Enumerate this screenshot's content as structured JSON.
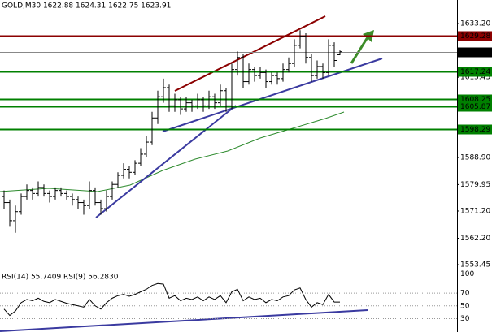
{
  "chart_data": {
    "type": "candlestick",
    "title": "GOLD,M30  1622.88 1624.31 1622.75 1623.91",
    "open": [
      1576,
      1574,
      1568,
      1571,
      1576,
      1578,
      1577,
      1579,
      1577,
      1576,
      1578,
      1577,
      1576,
      1575,
      1574,
      1573,
      1578,
      1574,
      1572,
      1576,
      1580,
      1583,
      1585,
      1584,
      1587,
      1590,
      1594,
      1602,
      1609,
      1612,
      1606,
      1608,
      1605,
      1607,
      1606,
      1608,
      1606,
      1609,
      1607,
      1611,
      1606,
      1618,
      1622,
      1614,
      1618,
      1616,
      1617,
      1614,
      1616,
      1615,
      1618,
      1620,
      1626,
      1629,
      1622,
      1616,
      1619,
      1617,
      1626,
      1622.88
    ],
    "high": [
      1578,
      1575,
      1573,
      1577,
      1580,
      1579,
      1581,
      1580,
      1578,
      1579,
      1579,
      1578,
      1577,
      1576,
      1575,
      1581,
      1579,
      1575,
      1578,
      1581,
      1584,
      1587,
      1586,
      1588,
      1592,
      1596,
      1604,
      1611,
      1615,
      1613,
      1610,
      1609,
      1609,
      1608,
      1610,
      1609,
      1611,
      1610,
      1613,
      1612,
      1620,
      1624,
      1623,
      1620,
      1619,
      1619,
      1618,
      1617,
      1617,
      1620,
      1622,
      1628,
      1631,
      1630,
      1623,
      1621,
      1620,
      1628,
      1627,
      1624.31
    ],
    "low": [
      1572,
      1566,
      1564,
      1570,
      1575,
      1575,
      1576,
      1576,
      1574,
      1575,
      1576,
      1575,
      1573,
      1572,
      1570,
      1572,
      1573,
      1570,
      1571,
      1575,
      1579,
      1582,
      1582,
      1583,
      1586,
      1589,
      1593,
      1600,
      1607,
      1604,
      1604,
      1603,
      1604,
      1604,
      1605,
      1604,
      1605,
      1605,
      1606,
      1604,
      1605,
      1616,
      1612,
      1613,
      1614,
      1615,
      1612,
      1613,
      1613,
      1614,
      1617,
      1619,
      1625,
      1620,
      1614,
      1615,
      1615,
      1616,
      1619,
      1622.75
    ],
    "close": [
      1574,
      1568,
      1571,
      1576,
      1578,
      1577,
      1579,
      1577,
      1576,
      1578,
      1577,
      1576,
      1575,
      1574,
      1573,
      1578,
      1574,
      1572,
      1576,
      1580,
      1583,
      1585,
      1584,
      1587,
      1590,
      1594,
      1602,
      1609,
      1612,
      1606,
      1608,
      1605,
      1607,
      1606,
      1608,
      1606,
      1609,
      1607,
      1611,
      1606,
      1618,
      1622,
      1614,
      1618,
      1616,
      1617,
      1614,
      1616,
      1615,
      1618,
      1620,
      1626,
      1629,
      1622,
      1616,
      1619,
      1617,
      1626,
      1621,
      1623.91
    ],
    "ylim": [
      1552.4,
      1641.0
    ],
    "yticks": [
      {
        "value": 1633.2,
        "label": "1633.20"
      },
      1615.45,
      {
        "value": 1588.9,
        "label": "1588.90"
      },
      1579.95,
      {
        "value": 1571.2,
        "label": "1571.20"
      },
      {
        "value": 1562.2,
        "label": "1562.20"
      },
      1553.45
    ],
    "levels": [
      {
        "value": 1629.28,
        "color": "#8b0000"
      },
      {
        "value": 1623.91,
        "color": "#000000"
      },
      {
        "value": 1617.24,
        "color": "#008000"
      },
      {
        "value": 1608.25,
        "color": "#008000"
      },
      {
        "value": 1605.87,
        "color": "#008000"
      },
      {
        "value": 1598.29,
        "color": "#008000"
      }
    ],
    "rsi": {
      "title": "RSI(14) 55.7409  RSI(9) 56.2830",
      "color": "#000000",
      "values": [
        45,
        35,
        42,
        55,
        60,
        58,
        62,
        57,
        55,
        60,
        57,
        54,
        52,
        50,
        48,
        60,
        50,
        45,
        55,
        62,
        66,
        68,
        65,
        68,
        72,
        76,
        82,
        85,
        84,
        62,
        66,
        58,
        62,
        60,
        64,
        58,
        64,
        60,
        66,
        55,
        72,
        76,
        58,
        64,
        60,
        62,
        55,
        60,
        58,
        64,
        66,
        75,
        78,
        60,
        48,
        55,
        52,
        68,
        56,
        56
      ],
      "ylim": [
        9,
        107
      ],
      "yticks": [
        100,
        70,
        50,
        30
      ]
    }
  }
}
